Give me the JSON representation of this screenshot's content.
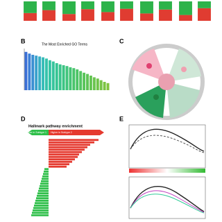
{
  "panel_labels": [
    "B",
    "C",
    "D",
    "E"
  ],
  "chart_data": [
    {
      "type": "stacked",
      "ylim": [
        0,
        100
      ],
      "categories": [
        null,
        null,
        null,
        null,
        null,
        null,
        null,
        null,
        null,
        null
      ],
      "series": [
        {
          "color": "#e03c31",
          "values": [
            40,
            55,
            35,
            60,
            45,
            62,
            38,
            58,
            30,
            65
          ]
        },
        {
          "color": "#2db34a",
          "values": [
            60,
            45,
            65,
            40,
            55,
            38,
            62,
            42,
            70,
            35
          ]
        }
      ]
    },
    {
      "type": "bar",
      "title": "The Most Enriched GO Terms",
      "ylim": [
        0,
        10
      ],
      "values": [
        9.2,
        8.8,
        8.5,
        8.3,
        8.1,
        7.9,
        7.6,
        7.2,
        6.9,
        6.5,
        6.2,
        6.0,
        5.8,
        5.5,
        5.3,
        5.0,
        4.6,
        4.2,
        3.9,
        3.5,
        3.1,
        2.8,
        2.4,
        2.0,
        1.7
      ],
      "colors": [
        "#3b6fd6",
        "#3b7fd6",
        "#3a8fd2",
        "#39a0cc",
        "#38b0c4",
        "#37bcb8",
        "#36c2ac",
        "#36c4a4",
        "#36c49c",
        "#37c494",
        "#39c48c",
        "#3cc484",
        "#40c47c",
        "#44c474",
        "#48c46c",
        "#4cc466",
        "#52c460",
        "#58c45a",
        "#5ec456",
        "#64c452",
        "#6ac44e",
        "#70c44a",
        "#76c446",
        "#7cc442",
        "#82c43e"
      ]
    },
    {
      "type": "hbar",
      "title": "Hallmark pathway enrichment",
      "arrow_labels": [
        "Higher in Subtype 2",
        "Higher in Subtype 1"
      ],
      "xlim": [
        -1.5,
        4
      ],
      "positive_color": "#e53a2f",
      "negative_color": "#2fbf4a",
      "values": [
        3.6,
        3.3,
        3.0,
        2.8,
        2.6,
        2.4,
        2.2,
        2.1,
        1.9,
        1.7,
        1.5,
        1.3,
        -0.3,
        -0.35,
        -0.4,
        -0.45,
        -0.5,
        -0.55,
        -0.6,
        -0.65,
        -0.7,
        -0.75,
        -0.8,
        -0.85,
        -0.9,
        -0.95,
        -1.0,
        -1.05,
        -1.1,
        -1.15,
        -1.2,
        -1.25
      ]
    }
  ]
}
